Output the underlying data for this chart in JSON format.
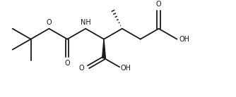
{
  "background": "#ffffff",
  "line_color": "#1a1a1a",
  "line_width": 1.3,
  "figsize": [
    3.34,
    1.38
  ],
  "dpi": 100,
  "xlim": [
    -0.3,
    7.8
  ],
  "ylim": [
    -1.5,
    1.8
  ],
  "font_size": 7.0
}
